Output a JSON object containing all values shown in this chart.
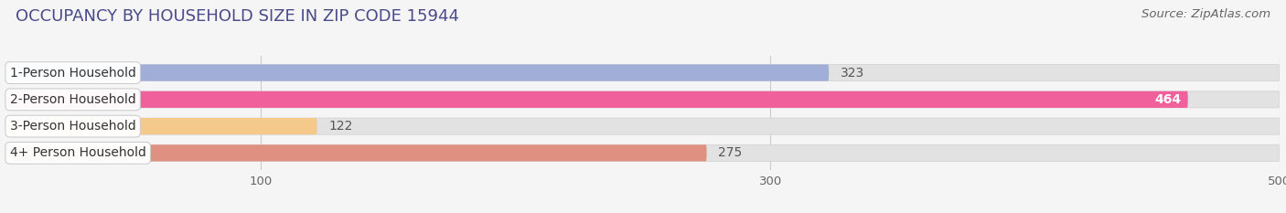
{
  "title": "OCCUPANCY BY HOUSEHOLD SIZE IN ZIP CODE 15944",
  "source": "Source: ZipAtlas.com",
  "categories": [
    "1-Person Household",
    "2-Person Household",
    "3-Person Household",
    "4+ Person Household"
  ],
  "values": [
    323,
    464,
    122,
    275
  ],
  "bar_colors": [
    "#a0aed8",
    "#f0609a",
    "#f5c98a",
    "#e09080"
  ],
  "bar_bg_color": "#e2e2e2",
  "xlim_max": 560,
  "data_max": 500,
  "xticks": [
    100,
    300,
    500
  ],
  "value_is_inside": [
    false,
    true,
    false,
    false
  ],
  "value_color_inside": "#ffffff",
  "value_color_outside": "#555555",
  "title_fontsize": 13,
  "source_fontsize": 9.5,
  "label_fontsize": 10,
  "value_fontsize": 10,
  "tick_fontsize": 9.5,
  "background_color": "#f5f5f5",
  "bar_height": 0.62,
  "label_box_color": "#ffffff",
  "label_box_edge": "#cccccc"
}
